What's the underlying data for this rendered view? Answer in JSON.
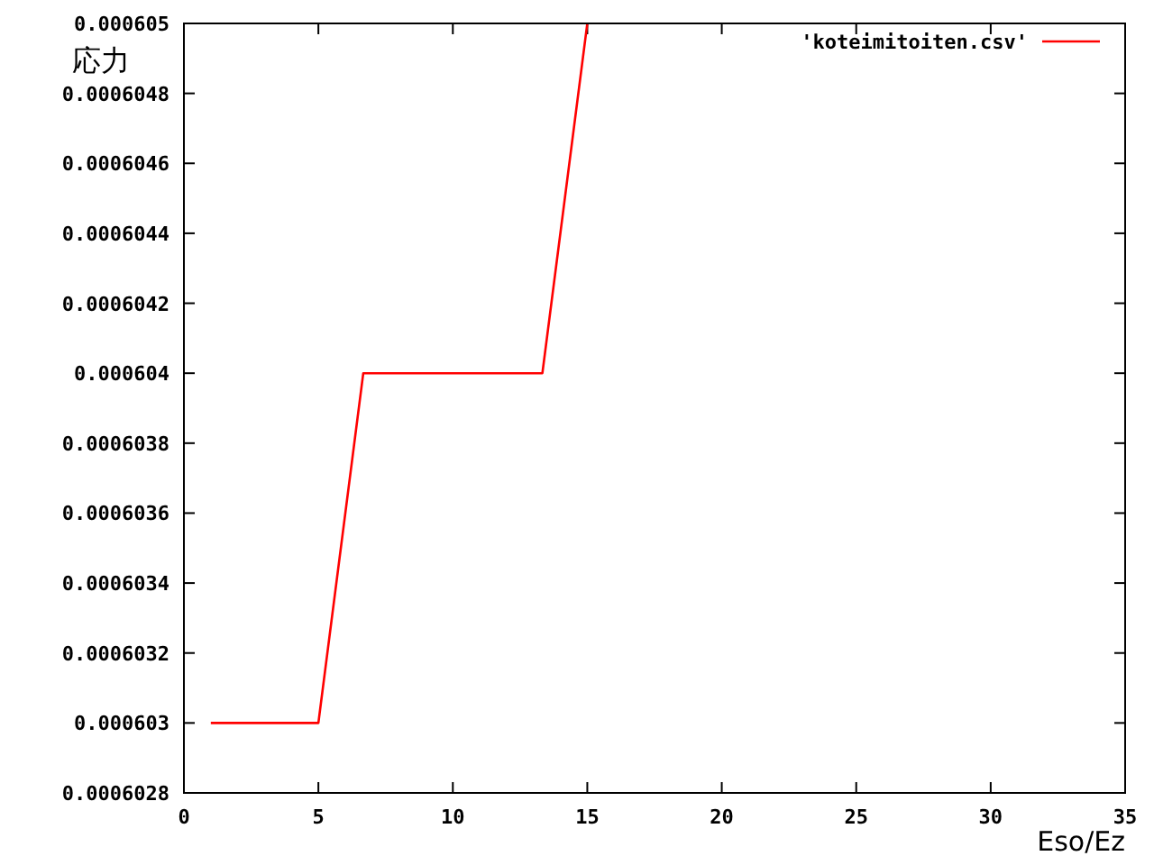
{
  "chart_data": {
    "type": "line",
    "xlabel": "Eso/Ez",
    "ylabel": "応力",
    "x": [
      1,
      5,
      6.67,
      13.33,
      15
    ],
    "series": [
      {
        "name": "'koteimitoiten.csv'",
        "color": "#ff0000",
        "values": [
          0.000603,
          0.000603,
          0.000604,
          0.000604,
          0.000605
        ]
      }
    ],
    "xlim": [
      0,
      35
    ],
    "xticks": [
      0,
      5,
      10,
      15,
      20,
      25,
      30,
      35
    ],
    "ylim": [
      0.0006028,
      0.000605
    ],
    "yticks": [
      0.0006028,
      0.000603,
      0.0006032,
      0.0006034,
      0.0006036,
      0.0006038,
      0.000604,
      0.0006042,
      0.0006044,
      0.0006046,
      0.0006048,
      0.000605
    ],
    "legend": "top right",
    "grid": false,
    "marker": "none",
    "line_style": "solid"
  }
}
